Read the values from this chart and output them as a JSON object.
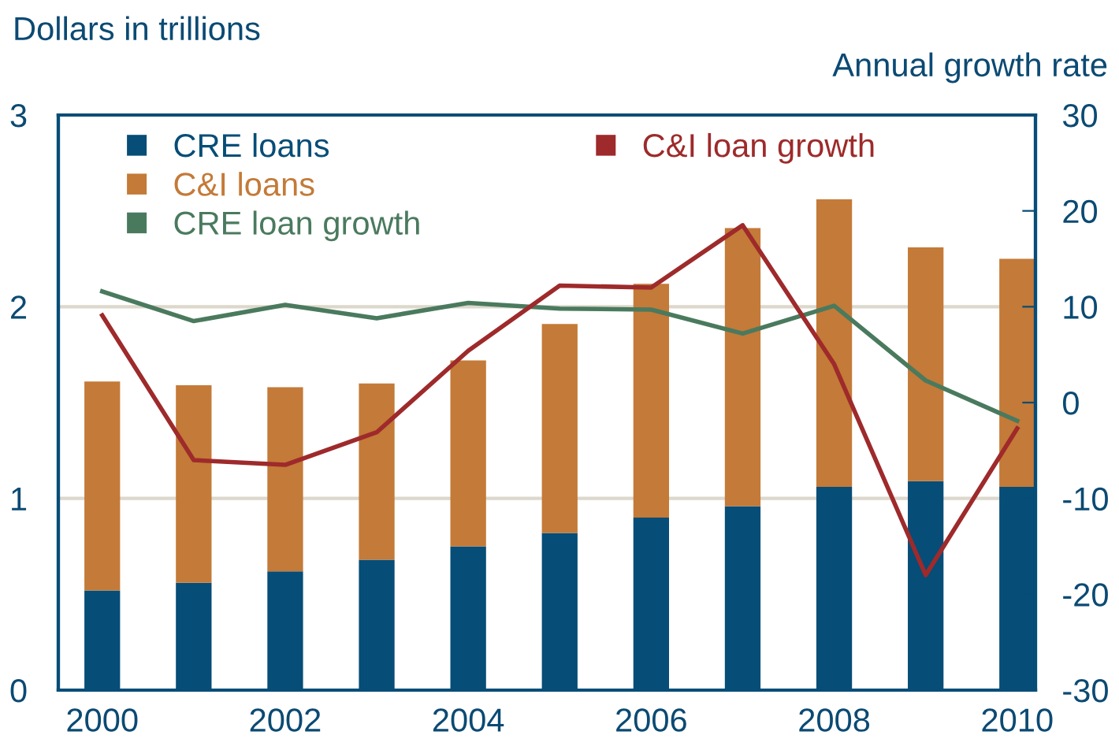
{
  "chart_data": {
    "type": "bar",
    "stacked": true,
    "ylabel": "Dollars in trillions",
    "y2label": "Annual growth rate",
    "x": [
      2000,
      2001,
      2002,
      2003,
      2004,
      2005,
      2006,
      2007,
      2008,
      2009,
      2010
    ],
    "xlim": [
      1999.52,
      2010.2
    ],
    "xticks": [
      2000,
      2002,
      2004,
      2006,
      2008,
      2010
    ],
    "ylim": [
      0,
      3
    ],
    "yticks": [
      0,
      1,
      2,
      3
    ],
    "y2lim": [
      -30,
      30
    ],
    "y2ticks": [
      -30,
      -20,
      -10,
      0,
      10,
      20,
      30
    ],
    "grid": "y",
    "legend": "top",
    "series": [
      {
        "name": "CRE loans",
        "color": "#064d77",
        "values": [
          0.52,
          0.56,
          0.62,
          0.68,
          0.75,
          0.82,
          0.9,
          0.96,
          1.06,
          1.09,
          1.06
        ]
      },
      {
        "name": "C&I loans",
        "color": "#c47a38",
        "values": [
          1.09,
          1.03,
          0.96,
          0.92,
          0.97,
          1.09,
          1.22,
          1.45,
          1.5,
          1.22,
          1.19
        ]
      },
      {
        "name": "CRE loan growth",
        "type": "line",
        "axis": "y2",
        "color": "#4a7a5e",
        "values": [
          11.6,
          8.5,
          10.2,
          8.8,
          10.4,
          9.8,
          9.7,
          7.2,
          10.1,
          2.3,
          -1.9
        ]
      },
      {
        "name": "C&I loan growth",
        "type": "line",
        "axis": "y2",
        "color": "#9e2a2b",
        "values": [
          9.1,
          -6.0,
          -6.5,
          -3.1,
          5.4,
          12.2,
          12.0,
          18.5,
          4.0,
          -18.0,
          -2.7
        ]
      }
    ]
  }
}
